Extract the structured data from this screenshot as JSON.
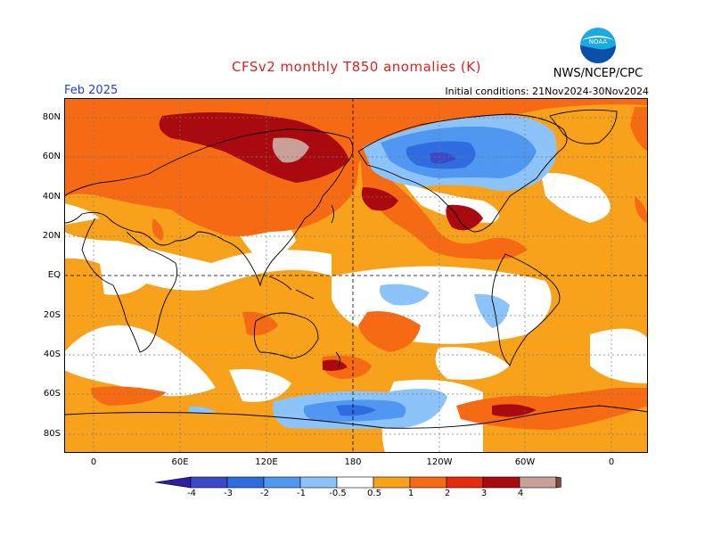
{
  "title": "CFSv2 monthly T850 anomalies (K)",
  "month": "Feb 2025",
  "initial_conditions": "Initial conditions: 21Nov2024-30Nov2024",
  "agency": "NWS/NCEP/CPC",
  "logo_text": "NOAA",
  "lat_labels": [
    "80N",
    "60N",
    "40N",
    "20N",
    "EQ",
    "20S",
    "40S",
    "60S",
    "80S"
  ],
  "lon_labels": [
    "0",
    "60E",
    "120E",
    "180",
    "120W",
    "60W",
    "0"
  ],
  "legend": {
    "tick_labels": [
      "-4",
      "-3",
      "-2",
      "-1",
      "-0.5",
      "0.5",
      "1",
      "2",
      "3",
      "4"
    ],
    "colors": [
      "#2a1fa0",
      "#3b48c8",
      "#2f6ce0",
      "#4f97f0",
      "#8cc4fa",
      "#ffffff",
      "#f7a21a",
      "#f76a14",
      "#e62a0c",
      "#a80a10",
      "#c8a098",
      "#7a4d40"
    ]
  }
}
